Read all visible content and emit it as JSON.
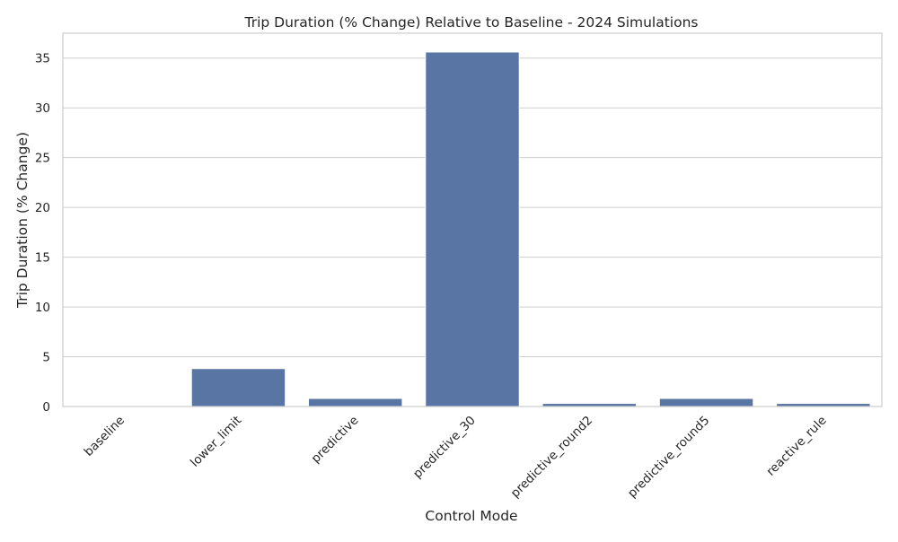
{
  "chart_data": {
    "type": "bar",
    "title": "Trip Duration (% Change) Relative to Baseline - 2024 Simulations",
    "xlabel": "Control Mode",
    "ylabel": "Trip Duration (% Change)",
    "categories": [
      "baseline",
      "lower_limit",
      "predictive",
      "predictive_30",
      "predictive_round2",
      "predictive_round5",
      "reactive_rule"
    ],
    "values": [
      0.0,
      3.8,
      0.8,
      35.6,
      0.3,
      0.8,
      0.3
    ],
    "ylim": [
      0,
      37.5
    ],
    "yticks": [
      0,
      5,
      10,
      15,
      20,
      25,
      30,
      35
    ],
    "grid": true,
    "bar_color": "#5875a4"
  }
}
